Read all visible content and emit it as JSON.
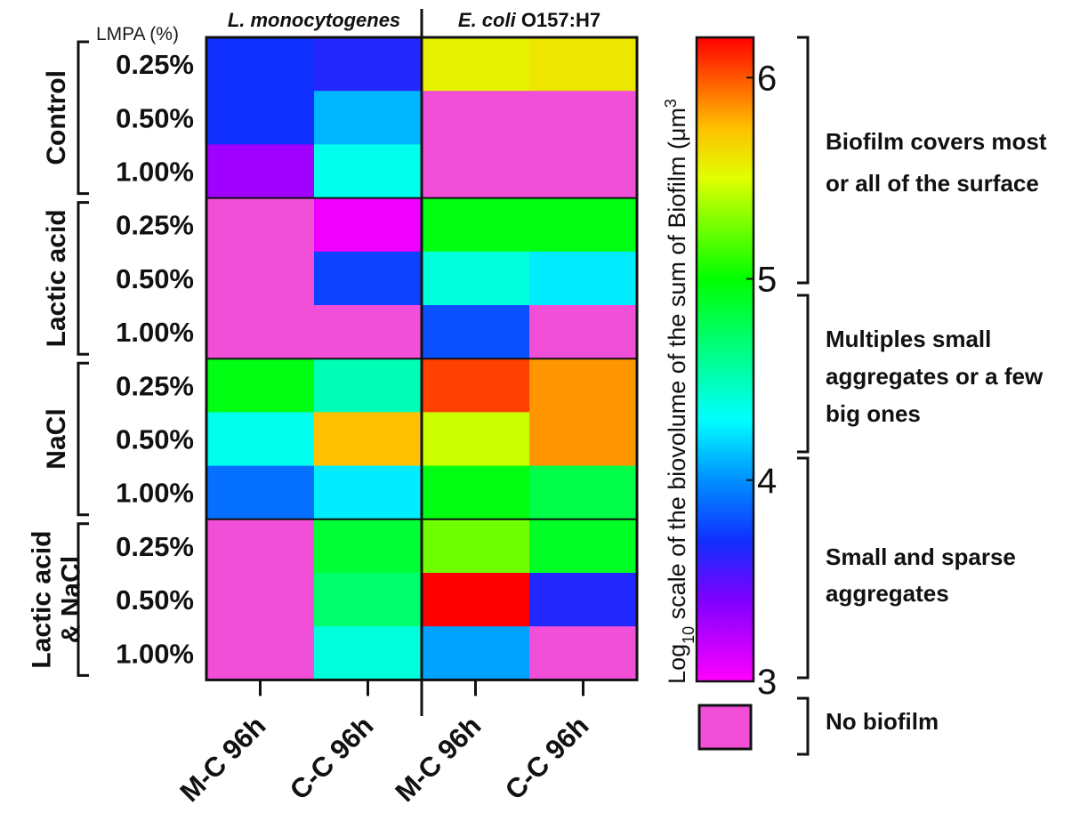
{
  "chart_data": {
    "type": "heatmap",
    "title": "",
    "row_axis_label": "LMPA (%)",
    "groups": [
      "Control",
      "Lactic acid",
      "NaCl",
      "Lactic acid & NaCl"
    ],
    "group_label_lines": [
      [
        "Control"
      ],
      [
        "Lactic acid"
      ],
      [
        "NaCl"
      ],
      [
        "Lactic acid",
        "& NaCl"
      ]
    ],
    "row_labels": [
      "0.25%",
      "0.50%",
      "1.00%"
    ],
    "organisms": [
      {
        "prefix": "L. monocytogenes",
        "suffix": ""
      },
      {
        "prefix": "E. coli",
        "suffix": " O157:H7"
      }
    ],
    "columns": [
      "M-C 96h",
      "C-C 96h",
      "M-C 96h",
      "C-C 96h"
    ],
    "no_biofilm_value": null,
    "values": [
      [
        3.7,
        3.65,
        5.55,
        5.6
      ],
      [
        3.7,
        4.1,
        null,
        null
      ],
      [
        3.3,
        4.35,
        null,
        null
      ],
      [
        null,
        3.05,
        4.95,
        4.95
      ],
      [
        null,
        3.75,
        4.4,
        4.25
      ],
      [
        null,
        null,
        3.8,
        null
      ],
      [
        4.95,
        4.5,
        6.05,
        5.85
      ],
      [
        4.35,
        5.75,
        5.45,
        5.85
      ],
      [
        3.9,
        4.25,
        4.95,
        4.8
      ],
      [
        null,
        4.85,
        5.25,
        4.9
      ],
      [
        null,
        4.7,
        6.2,
        3.65
      ],
      [
        null,
        4.4,
        4.05,
        null
      ]
    ],
    "colorbar": {
      "range": [
        3,
        6.2
      ],
      "ticks": [
        3,
        4,
        5,
        6
      ],
      "tick_labels": [
        "3",
        "4",
        "5",
        "6"
      ],
      "label_prefix": "Log",
      "label_subscript": "10",
      "label_main": " scale of the biovolume of the sum of Biofilm (μm",
      "label_superscript": "3",
      "no_biofilm_color": "#f24fd8",
      "gradient_stops": [
        {
          "v": 3.0,
          "color": "#ff00ff"
        },
        {
          "v": 3.4,
          "color": "#8000ff"
        },
        {
          "v": 3.7,
          "color": "#1030ff"
        },
        {
          "v": 4.0,
          "color": "#0090ff"
        },
        {
          "v": 4.3,
          "color": "#00ffff"
        },
        {
          "v": 5.0,
          "color": "#00ff00"
        },
        {
          "v": 5.5,
          "color": "#e0ff00"
        },
        {
          "v": 5.75,
          "color": "#ffc000"
        },
        {
          "v": 6.2,
          "color": "#ff0000"
        }
      ]
    },
    "annotations": [
      {
        "lines": [
          "Biofilm covers most",
          "or all of the surface"
        ]
      },
      {
        "lines": [
          "Multiples small",
          "aggregates or a few",
          "big ones"
        ]
      },
      {
        "lines": [
          "Small and sparse",
          "aggregates"
        ]
      },
      {
        "lines": [
          "No biofilm"
        ]
      }
    ]
  }
}
